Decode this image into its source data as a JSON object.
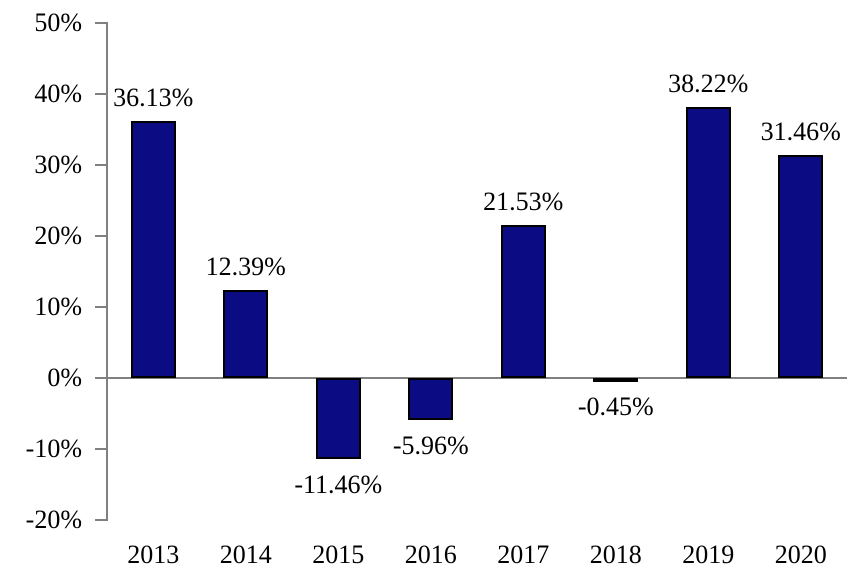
{
  "chart_data": {
    "type": "bar",
    "title": "",
    "xlabel": "",
    "ylabel": "",
    "categories": [
      "2013",
      "2014",
      "2015",
      "2016",
      "2017",
      "2018",
      "2019",
      "2020"
    ],
    "values": [
      36.13,
      12.39,
      -11.46,
      -5.96,
      21.53,
      -0.45,
      38.22,
      31.46
    ],
    "value_labels": [
      "36.13%",
      "12.39%",
      "-11.46%",
      "-5.96%",
      "21.53%",
      "-0.45%",
      "38.22%",
      "31.46%"
    ],
    "y_ticks": [
      {
        "value": 50,
        "label": "50%"
      },
      {
        "value": 40,
        "label": "40%"
      },
      {
        "value": 30,
        "label": "30%"
      },
      {
        "value": 20,
        "label": "20%"
      },
      {
        "value": 10,
        "label": "10%"
      },
      {
        "value": 0,
        "label": "0%"
      },
      {
        "value": -10,
        "label": "-10%"
      },
      {
        "value": -20,
        "label": "-20%"
      }
    ],
    "ylim": [
      -20,
      50
    ],
    "grid": false,
    "legend": "none",
    "colors": {
      "bar_fill": "#0B0B83",
      "bar_border": "#000000",
      "axis": "#808080",
      "text": "#000000",
      "background": "#ffffff"
    }
  }
}
